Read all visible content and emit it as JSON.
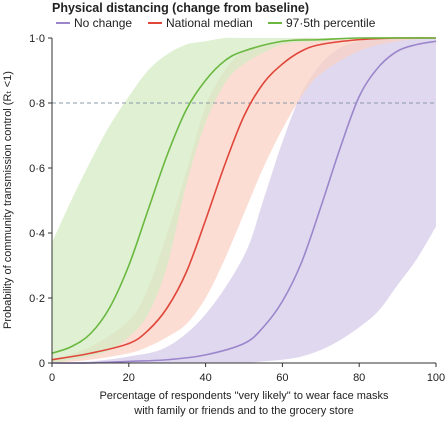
{
  "chart_data": {
    "type": "line",
    "legend_title": "Physical distancing (change from baseline)",
    "xlabel_lines": [
      "Percentage of respondents \"very likely\" to wear face masks",
      "with family or friends and to the grocery store"
    ],
    "ylabel": "Probability of community transmission control (Rₜ <1)",
    "xlim": [
      0,
      100
    ],
    "ylim": [
      0,
      1
    ],
    "x_ticks": [
      0,
      20,
      40,
      60,
      80,
      100
    ],
    "x_tick_labels": [
      "0",
      "20",
      "40",
      "60",
      "80",
      "100"
    ],
    "y_ticks": [
      0,
      0.2,
      0.4,
      0.6,
      0.8,
      1.0
    ],
    "y_tick_labels": [
      "0",
      "0·2",
      "0·4",
      "0·6",
      "0·8",
      "1·0"
    ],
    "threshold_line": 0.8,
    "legend_position": "top",
    "series": [
      {
        "name": "No change",
        "color": "#9b86cc",
        "band_color": "#d5cbe9",
        "x": [
          0,
          10,
          20,
          30,
          40,
          50,
          55,
          60,
          65,
          70,
          75,
          80,
          85,
          90,
          95,
          100
        ],
        "y": [
          0.0,
          0.0,
          0.005,
          0.01,
          0.025,
          0.06,
          0.11,
          0.19,
          0.31,
          0.48,
          0.66,
          0.82,
          0.91,
          0.96,
          0.98,
          0.99
        ],
        "lower": [
          0.0,
          0.0,
          0.0,
          0.0,
          0.0,
          0.0,
          0.005,
          0.01,
          0.02,
          0.04,
          0.07,
          0.11,
          0.16,
          0.24,
          0.32,
          0.42
        ],
        "upper": [
          0.0,
          0.005,
          0.02,
          0.05,
          0.15,
          0.33,
          0.5,
          0.68,
          0.83,
          0.92,
          0.97,
          0.99,
          1.0,
          1.0,
          1.0,
          1.0
        ]
      },
      {
        "name": "National median",
        "color": "#e0463a",
        "band_color": "#f9d2c4",
        "x": [
          0,
          10,
          20,
          25,
          30,
          35,
          40,
          45,
          50,
          55,
          60,
          65,
          70,
          80,
          90,
          100
        ],
        "y": [
          0.01,
          0.03,
          0.06,
          0.1,
          0.17,
          0.28,
          0.44,
          0.61,
          0.76,
          0.86,
          0.92,
          0.96,
          0.98,
          0.995,
          1.0,
          1.0
        ],
        "lower": [
          0.0,
          0.01,
          0.03,
          0.05,
          0.08,
          0.12,
          0.2,
          0.32,
          0.46,
          0.6,
          0.72,
          0.82,
          0.89,
          0.96,
          0.99,
          1.0
        ],
        "upper": [
          0.01,
          0.05,
          0.13,
          0.23,
          0.4,
          0.59,
          0.79,
          0.9,
          0.96,
          0.98,
          0.99,
          1.0,
          1.0,
          1.0,
          1.0,
          1.0
        ]
      },
      {
        "name": "97·5th percentile",
        "color": "#6ab83f",
        "band_color": "#d4ebc4",
        "x": [
          0,
          5,
          10,
          15,
          20,
          25,
          30,
          35,
          40,
          45,
          50,
          60,
          70,
          80,
          100
        ],
        "y": [
          0.03,
          0.05,
          0.09,
          0.17,
          0.3,
          0.47,
          0.64,
          0.78,
          0.87,
          0.93,
          0.96,
          0.99,
          0.995,
          1.0,
          1.0
        ],
        "lower": [
          0.0,
          0.01,
          0.02,
          0.04,
          0.08,
          0.15,
          0.3,
          0.55,
          0.74,
          0.86,
          0.92,
          0.98,
          0.99,
          1.0,
          1.0
        ],
        "upper": [
          0.37,
          0.5,
          0.62,
          0.73,
          0.82,
          0.9,
          0.95,
          0.98,
          0.99,
          1.0,
          1.0,
          1.0,
          1.0,
          1.0,
          1.0
        ]
      }
    ]
  }
}
